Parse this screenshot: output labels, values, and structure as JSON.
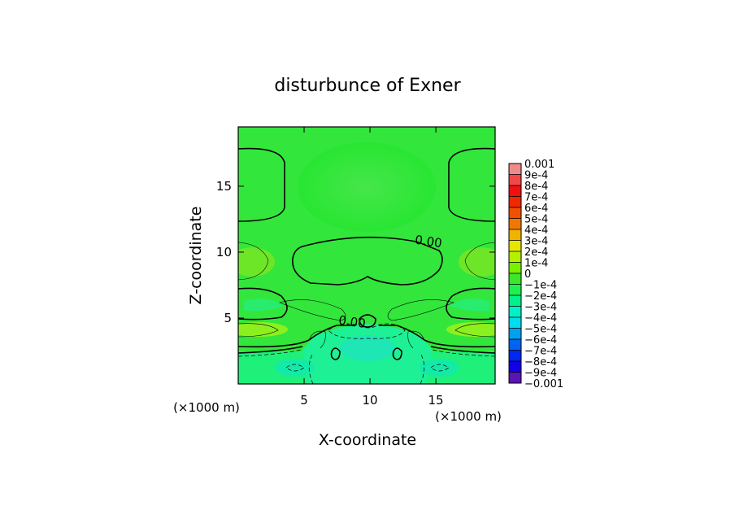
{
  "chart_data": {
    "type": "heatmap",
    "title": "disturbunce of Exner",
    "xlabel": "X-coordinate",
    "ylabel": "Z-coordinate",
    "x_unit_label": "(×1000 m)",
    "z_unit_label": "(×1000 m)",
    "xlim": [
      0,
      19.5
    ],
    "ylim": [
      0,
      19.5
    ],
    "x_ticks": [
      "5",
      "10",
      "15"
    ],
    "y_ticks": [
      "5",
      "10",
      "15"
    ],
    "x_tick_values": [
      5,
      10,
      15
    ],
    "y_tick_values": [
      5,
      10,
      15
    ],
    "contour_labels": [
      "0.00",
      "0.00"
    ],
    "contour_label_positions": [
      [
        14.4,
        10.5
      ],
      [
        8.6,
        4.4
      ]
    ],
    "colorbar": {
      "min": -0.001,
      "max": 0.001,
      "labels": [
        "0.001",
        "9e-4",
        "8e-4",
        "7e-4",
        "6e-4",
        "5e-4",
        "4e-4",
        "3e-4",
        "2e-4",
        "1e-4",
        "0",
        "−1e-4",
        "−2e-4",
        "−3e-4",
        "−4e-4",
        "−5e-4",
        "−6e-4",
        "−7e-4",
        "−8e-4",
        "−9e-4",
        "−0.001"
      ],
      "colors": [
        "#f08a8a",
        "#f04848",
        "#f01010",
        "#f02800",
        "#f05000",
        "#f07800",
        "#f0b400",
        "#e6e600",
        "#b4f000",
        "#78f000",
        "#3ce628",
        "#1ef050",
        "#00f08c",
        "#00f0c8",
        "#00dcf0",
        "#00a0f0",
        "#0064f0",
        "#0028f0",
        "#1400e6",
        "#5a14b4"
      ]
    }
  }
}
